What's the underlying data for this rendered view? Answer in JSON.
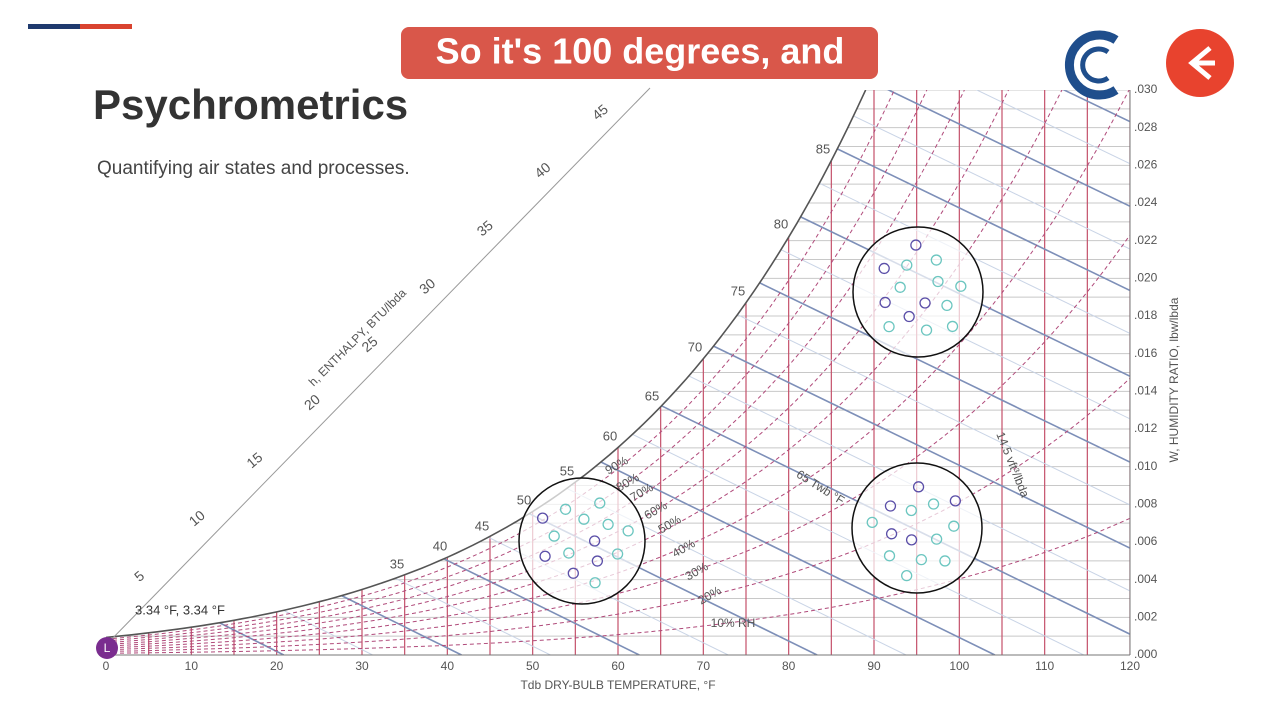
{
  "caption": "So it's 100 degrees, and",
  "slide": {
    "title": "Psychrometrics",
    "subtitle": "Quantifying air states and processes."
  },
  "chart": {
    "x_axis_title": "Tdb DRY-BULB TEMPERATURE, °F",
    "y_axis_title": "W, HUMIDITY RATIO, lbw/lbda",
    "enthalpy_title": "h, ENTHALPY, BTU/lbda",
    "x_ticks": [
      "0",
      "10",
      "20",
      "30",
      "40",
      "50",
      "60",
      "70",
      "80",
      "90",
      "100",
      "110",
      "120"
    ],
    "y_ticks": [
      ".000",
      ".002",
      ".004",
      ".006",
      ".008",
      ".010",
      ".012",
      ".014",
      ".016",
      ".018",
      ".020",
      ".022",
      ".024",
      ".026",
      ".028",
      ".030"
    ],
    "enthalpy_labels": [
      "5",
      "10",
      "15",
      "20",
      "25",
      "30",
      "35",
      "40",
      "45"
    ],
    "wet_bulb_labels": [
      "35",
      "40",
      "45",
      "50",
      "55",
      "60",
      "65",
      "70",
      "75",
      "80",
      "85"
    ],
    "rh_labels": [
      "90%",
      "80%",
      "70%",
      "60%",
      "50%",
      "40%",
      "30%",
      "20%",
      "10% RH"
    ],
    "wet_bulb_title": "65 Twb °F",
    "volume_title": "14.5 vft³/lbda",
    "point_label": "3.34 °F, 3.34 °F",
    "marker": "L"
  }
}
